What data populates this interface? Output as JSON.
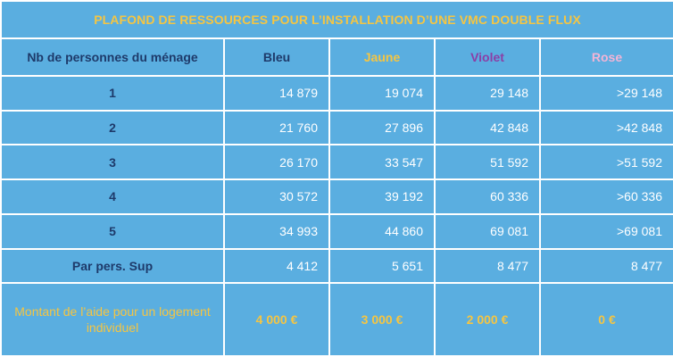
{
  "title": "PLAFOND DE RESSOURCES POUR L’INSTALLATION D’UNE VMC DOUBLE FLUX",
  "headers": [
    "Nb de personnes du ménage",
    "Bleu",
    "Jaune",
    "Violet",
    "Rose"
  ],
  "rows": [
    {
      "label": "1",
      "values": [
        "14 879",
        "19 074",
        "29 148",
        ">29 148"
      ]
    },
    {
      "label": "2",
      "values": [
        "21 760",
        "27 896",
        "42 848",
        ">42 848"
      ]
    },
    {
      "label": "3",
      "values": [
        "26 170",
        "33 547",
        "51 592",
        ">51 592"
      ]
    },
    {
      "label": "4",
      "values": [
        "30 572",
        "39 192",
        "60 336",
        ">60 336"
      ]
    },
    {
      "label": "5",
      "values": [
        "34 993",
        "44 860",
        "69 081",
        ">69 081"
      ]
    },
    {
      "label": "Par pers. Sup",
      "values": [
        "4 412",
        "5 651",
        "8 477",
        "8 477"
      ]
    }
  ],
  "aide": {
    "label": "Montant de l’aide pour un logement individuel",
    "values": [
      "4 000 €",
      "3 000 €",
      "2 000 €",
      "0 €"
    ]
  },
  "colors": {
    "background": "#5aaee0",
    "navy": "#1e3a6a",
    "yellow": "#f5c542",
    "violet": "#8b3fa6",
    "rose": "#f3b4d6"
  }
}
